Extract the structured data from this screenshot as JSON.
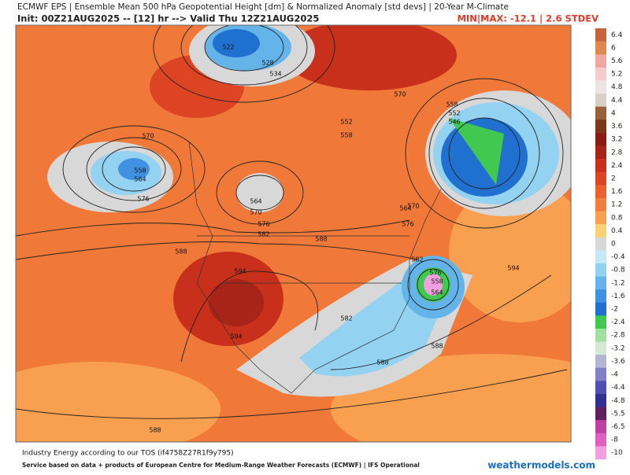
{
  "header": {
    "title": "ECMWF EPS | Ensemble Mean 500 hPa Geopotential Height [dm] & Normalized Anomaly [std devs] | 20-Year M-Climate",
    "init": "Init: 00Z21AUG2025 -- [12] hr --> Valid Thu 12Z21AUG2025",
    "minmax": "MIN|MAX: -12.1 | 2.6 STDEV"
  },
  "colorbar": [
    {
      "label": "6.4",
      "color": "#c8643c"
    },
    {
      "label": "6",
      "color": "#e08850"
    },
    {
      "label": "5.6",
      "color": "#f0a8a0"
    },
    {
      "label": "5.2",
      "color": "#f5cccc"
    },
    {
      "label": "4.8",
      "color": "#ece4e4"
    },
    {
      "label": "4.4",
      "color": "#d8cfc8"
    },
    {
      "label": "4",
      "color": "#9a6038"
    },
    {
      "label": "3.6",
      "color": "#7a3a1a"
    },
    {
      "label": "3.2",
      "color": "#8a1c14"
    },
    {
      "label": "2.8",
      "color": "#a82418"
    },
    {
      "label": "2.4",
      "color": "#c8301c"
    },
    {
      "label": "2",
      "color": "#dc4424"
    },
    {
      "label": "1.6",
      "color": "#ec6030"
    },
    {
      "label": "1.2",
      "color": "#f47c3c"
    },
    {
      "label": "0.8",
      "color": "#f8a050"
    },
    {
      "label": "0.4",
      "color": "#fbd276"
    },
    {
      "label": "0",
      "color": "#d8d8d8"
    },
    {
      "label": "-0.4",
      "color": "#c4eaf8"
    },
    {
      "label": "-0.8",
      "color": "#94d2f2"
    },
    {
      "label": "-1.2",
      "color": "#64b4ea"
    },
    {
      "label": "-1.6",
      "color": "#4092e0"
    },
    {
      "label": "-2",
      "color": "#2070d0"
    },
    {
      "label": "-2.4",
      "color": "#40c850"
    },
    {
      "label": "-2.8",
      "color": "#a0e0a0"
    },
    {
      "label": "-3.2",
      "color": "#d4ead4"
    },
    {
      "label": "-3.6",
      "color": "#b4b4d4"
    },
    {
      "label": "-4",
      "color": "#8080c4"
    },
    {
      "label": "-4.4",
      "color": "#5050b0"
    },
    {
      "label": "-4.8",
      "color": "#303090"
    },
    {
      "label": "-5.5",
      "color": "#602060"
    },
    {
      "label": "-6.5",
      "color": "#c040a0"
    },
    {
      "label": "-8",
      "color": "#e060c0"
    },
    {
      "label": "-10",
      "color": "#f0a0e0"
    }
  ],
  "contour_labels": [
    "522",
    "528",
    "534",
    "552",
    "558",
    "570",
    "558",
    "552",
    "546",
    "570",
    "558",
    "564",
    "576",
    "564",
    "570",
    "576",
    "582",
    "588",
    "564",
    "570",
    "576",
    "582",
    "588",
    "594",
    "594",
    "588",
    "576",
    "558",
    "564",
    "582",
    "594",
    "588",
    "588"
  ],
  "footer": {
    "terms": "Industry Energy according to our TOS (if4758Z27R1f9y795)",
    "service": "Service based on data + products of European Centre for Medium-Range Weather Forecasts (ECMWF) | IFS Operational",
    "site": "weathermodels.com"
  }
}
